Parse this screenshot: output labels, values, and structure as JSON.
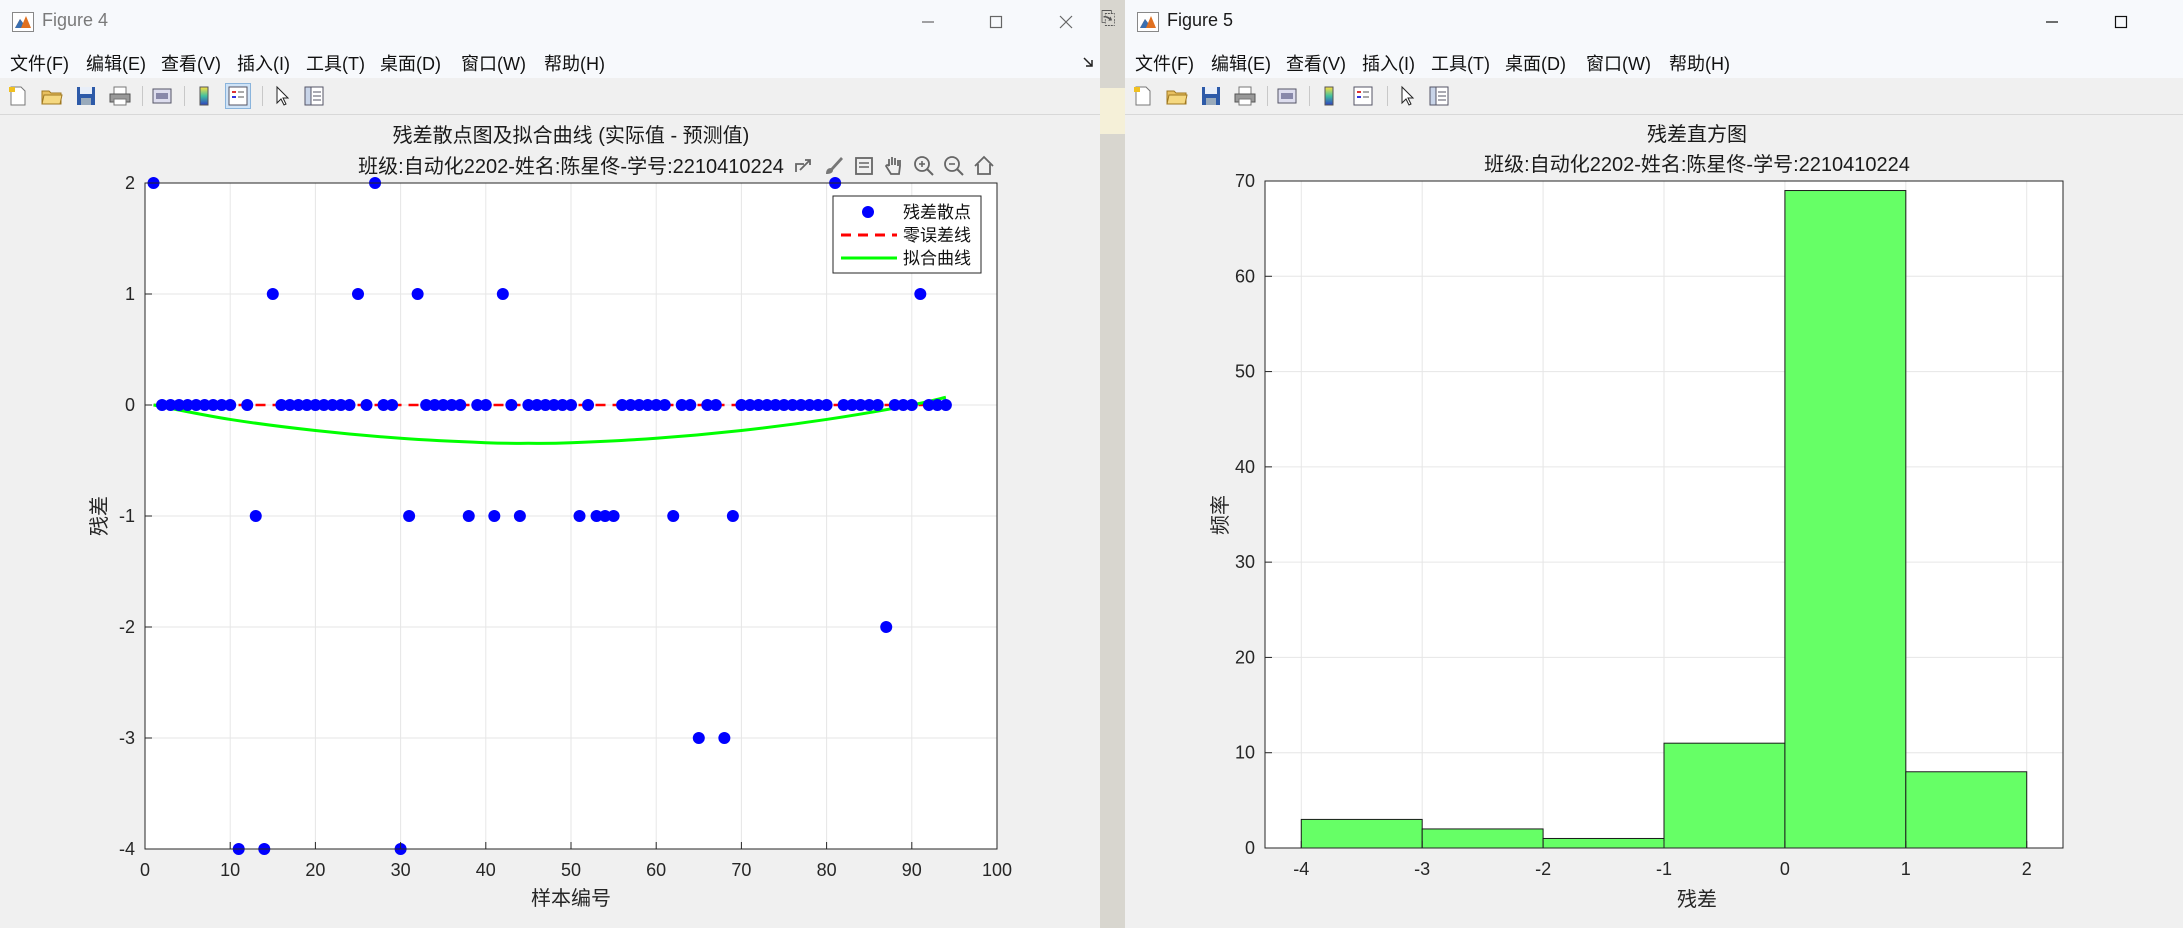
{
  "window4": {
    "title": "Figure 4",
    "menu": [
      "文件(F)",
      "编辑(E)",
      "查看(V)",
      "插入(I)",
      "工具(T)",
      "桌面(D)",
      "窗口(W)",
      "帮助(H)"
    ],
    "controls": {
      "minimize": "minimize-icon",
      "maximize": "maximize-icon",
      "close": "close-icon"
    }
  },
  "window5": {
    "title": "Figure 5",
    "menu": [
      "文件(F)",
      "编辑(E)",
      "查看(V)",
      "插入(I)",
      "工具(T)",
      "桌面(D)",
      "窗口(W)",
      "帮助(H)"
    ],
    "controls": {
      "minimize": "minimize-icon",
      "maximize": "maximize-icon"
    }
  },
  "toolbar_icons": [
    "new-figure-icon",
    "open-file-icon",
    "save-icon",
    "print-icon",
    "link-plot-icon",
    "colorbar-icon",
    "legend-icon",
    "pointer-icon",
    "property-inspector-icon"
  ],
  "axes_toolbar_icons": [
    "export-icon",
    "brush-icon",
    "datatip-icon",
    "pan-icon",
    "zoom-in-icon",
    "zoom-out-icon",
    "home-icon"
  ],
  "colors": {
    "scatter": "#0000ff",
    "zero_line": "#ff0000",
    "fit_curve": "#00ff00",
    "hist_bar": "#66ff66"
  },
  "chart_data": [
    {
      "type": "scatter",
      "title": "残差散点图及拟合曲线 (实际值 - 预测值)",
      "subtitle": "班级:自动化2202-姓名:陈星佟-学号:2210410224",
      "xlabel": "样本编号",
      "ylabel": "残差",
      "xlim": [
        0,
        100
      ],
      "ylim": [
        -4,
        2
      ],
      "xticks": [
        "0",
        "10",
        "20",
        "30",
        "40",
        "50",
        "60",
        "70",
        "80",
        "90",
        "100"
      ],
      "yticks": [
        "-4",
        "-3",
        "-2",
        "-1",
        "0",
        "1",
        "2"
      ],
      "grid": true,
      "legend_position": "top-right",
      "series": [
        {
          "name": "残差散点",
          "style": "markers",
          "x": [
            1,
            2,
            3,
            4,
            5,
            6,
            7,
            8,
            9,
            10,
            11,
            12,
            13,
            14,
            15,
            16,
            17,
            18,
            19,
            20,
            21,
            22,
            23,
            24,
            25,
            26,
            27,
            28,
            29,
            30,
            31,
            32,
            33,
            34,
            35,
            36,
            37,
            38,
            39,
            40,
            41,
            42,
            43,
            44,
            45,
            46,
            47,
            48,
            49,
            50,
            51,
            52,
            53,
            54,
            55,
            56,
            57,
            58,
            59,
            60,
            61,
            62,
            63,
            64,
            65,
            66,
            67,
            68,
            69,
            70,
            71,
            72,
            73,
            74,
            75,
            76,
            77,
            78,
            79,
            80,
            81,
            82,
            83,
            84,
            85,
            86,
            87,
            88,
            89,
            90,
            91,
            92,
            93,
            94
          ],
          "y": [
            2,
            0,
            0,
            0,
            0,
            0,
            0,
            0,
            0,
            0,
            -4,
            0,
            -1,
            -4,
            1,
            0,
            0,
            0,
            0,
            0,
            0,
            0,
            0,
            0,
            1,
            0,
            2,
            0,
            0,
            -4,
            -1,
            1,
            0,
            0,
            0,
            0,
            0,
            -1,
            0,
            0,
            -1,
            1,
            0,
            -1,
            0,
            0,
            0,
            0,
            0,
            0,
            -1,
            0,
            -1,
            -1,
            -1,
            0,
            0,
            0,
            0,
            0,
            0,
            -1,
            0,
            0,
            -3,
            0,
            0,
            -3,
            -1,
            0,
            0,
            0,
            0,
            0,
            0,
            0,
            0,
            0,
            0,
            0,
            2,
            0,
            0,
            0,
            0,
            0,
            -2,
            0,
            0,
            0,
            1,
            0,
            0,
            0
          ]
        },
        {
          "name": "零误差线",
          "style": "dashed",
          "x": [
            1,
            94
          ],
          "y": [
            0,
            0
          ]
        },
        {
          "name": "拟合曲线",
          "style": "line",
          "x": [
            1,
            10,
            20,
            30,
            40,
            45,
            50,
            60,
            70,
            80,
            90,
            94
          ],
          "y": [
            0.0,
            -0.13,
            -0.23,
            -0.3,
            -0.34,
            -0.345,
            -0.34,
            -0.3,
            -0.23,
            -0.13,
            0.0,
            0.07
          ]
        }
      ]
    },
    {
      "type": "bar",
      "title": "残差直方图",
      "subtitle": "班级:自动化2202-姓名:陈星佟-学号:2210410224",
      "xlabel": "残差",
      "ylabel": "频率",
      "xlim": [
        -4.3,
        2.3
      ],
      "ylim": [
        0,
        70
      ],
      "xticks": [
        "-4",
        "-3",
        "-2",
        "-1",
        "0",
        "1",
        "2"
      ],
      "yticks": [
        "0",
        "10",
        "20",
        "30",
        "40",
        "50",
        "60",
        "70"
      ],
      "grid": true,
      "bin_edges": [
        -4,
        -3,
        -2,
        -1,
        0,
        1,
        2
      ],
      "values": [
        3,
        2,
        1,
        11,
        69,
        8
      ]
    }
  ]
}
